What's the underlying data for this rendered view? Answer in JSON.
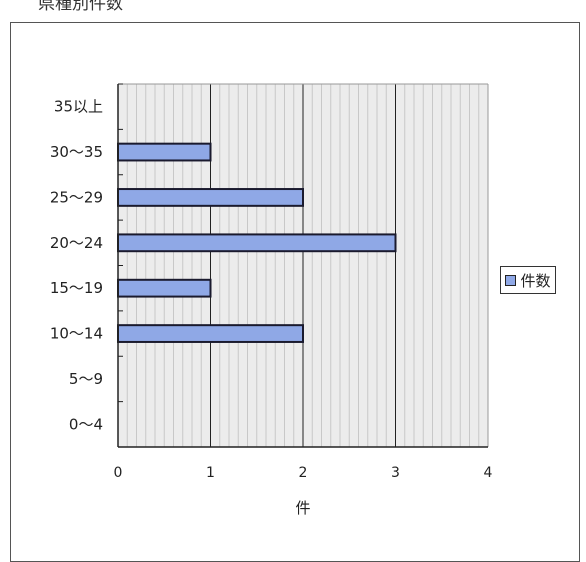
{
  "header": {
    "text": "県種別件数"
  },
  "chart_data": {
    "type": "bar",
    "orientation": "horizontal",
    "title": "",
    "xlabel": "件",
    "ylabel": "",
    "categories": [
      "0〜4",
      "5〜9",
      "10〜14",
      "15〜19",
      "20〜24",
      "25〜29",
      "30〜35",
      "35以上"
    ],
    "series": [
      {
        "name": "件数",
        "values": [
          0,
          0,
          2,
          1,
          3,
          2,
          1,
          0
        ]
      }
    ],
    "xlim": [
      0,
      4
    ],
    "xticks": [
      "0",
      "1",
      "2",
      "3",
      "4"
    ],
    "grid": true,
    "legend": "right",
    "colors": {
      "bar": "#8fa8e6",
      "bar_border": "#1a1a2e",
      "plot_bg": "#ececec",
      "grid_minor": "#c8c8c8",
      "grid_major": "#222222"
    }
  }
}
